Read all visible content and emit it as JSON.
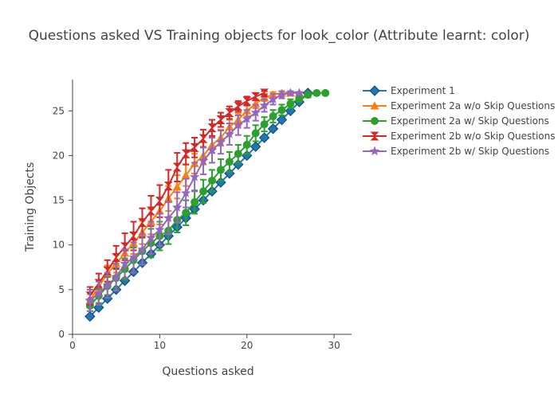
{
  "chart_data": {
    "type": "line",
    "title": "Questions asked VS Training objects for look_color (Attribute learnt: color)",
    "xlabel": "Questions asked",
    "ylabel": "Training Objects",
    "xlim": [
      0,
      32
    ],
    "ylim": [
      0,
      28.5
    ],
    "xticks": [
      0,
      10,
      20,
      30
    ],
    "yticks": [
      0,
      5,
      10,
      15,
      20,
      25
    ],
    "grid": false,
    "legend_position": "top-right",
    "series": [
      {
        "name": "Experiment 1",
        "color": "#1f77b4",
        "marker": "diamond",
        "x": [
          2,
          3,
          4,
          5,
          6,
          7,
          8,
          9,
          10,
          11,
          12,
          13,
          14,
          15,
          16,
          17,
          18,
          19,
          20,
          21,
          22,
          23,
          24,
          25,
          26,
          27
        ],
        "y": [
          2,
          3,
          4,
          5,
          6,
          7,
          8,
          9,
          10,
          11,
          12,
          13,
          14,
          15,
          16,
          17,
          18,
          19,
          20,
          21,
          22,
          23,
          24,
          25,
          26,
          27
        ],
        "err": [
          0,
          0,
          0,
          0,
          0,
          0,
          0,
          0,
          0,
          0,
          0,
          0,
          0,
          0,
          0,
          0,
          0,
          0,
          0,
          0,
          0,
          0,
          0,
          0,
          0,
          0
        ]
      },
      {
        "name": "Experiment 2a w/o Skip Questions",
        "color": "#ff7f0e",
        "marker": "triangle-up",
        "x": [
          2,
          3,
          4,
          5,
          6,
          7,
          8,
          9,
          10,
          11,
          12,
          13,
          14,
          15,
          16,
          17,
          18,
          19,
          20,
          21,
          22,
          23,
          24,
          25,
          26
        ],
        "y": [
          3.8,
          5.3,
          6.8,
          7.9,
          9.1,
          10.2,
          11.4,
          12.6,
          13.8,
          15.2,
          16.5,
          17.8,
          19.1,
          20.0,
          21.2,
          22.0,
          23.2,
          24.0,
          25.0,
          25.8,
          26.5,
          26.8,
          27.0,
          27.0,
          27.0
        ],
        "err": [
          0.7,
          0.8,
          0.9,
          1.0,
          1.1,
          1.2,
          1.3,
          1.4,
          1.5,
          1.4,
          1.3,
          1.2,
          1.1,
          1.0,
          0.9,
          0.9,
          0.8,
          0.7,
          0.6,
          0.5,
          0.4,
          0.3,
          0.2,
          0.2,
          0.1
        ]
      },
      {
        "name": "Experiment 2a w/ Skip Questions",
        "color": "#2ca02c",
        "marker": "circle",
        "x": [
          2,
          3,
          4,
          5,
          6,
          7,
          8,
          9,
          10,
          11,
          12,
          13,
          14,
          15,
          16,
          17,
          18,
          19,
          20,
          21,
          22,
          23,
          24,
          25,
          26,
          27,
          28,
          29
        ],
        "y": [
          3.2,
          4.3,
          5.4,
          6.3,
          7.3,
          8.3,
          9.3,
          10.2,
          11.0,
          11.6,
          12.8,
          13.6,
          14.8,
          16.0,
          17.2,
          18.4,
          19.3,
          20.2,
          21.2,
          22.5,
          23.5,
          24.4,
          25.1,
          25.8,
          26.4,
          26.8,
          27.0,
          27.0
        ],
        "err": [
          0.6,
          0.8,
          1.0,
          1.1,
          1.2,
          1.4,
          1.5,
          1.6,
          1.6,
          1.5,
          1.4,
          1.4,
          1.3,
          1.3,
          1.2,
          1.2,
          1.1,
          1.0,
          1.0,
          0.9,
          0.8,
          0.7,
          0.6,
          0.5,
          0.4,
          0.3,
          0.1,
          0.1
        ]
      },
      {
        "name": "Experiment 2b w/o Skip Questions",
        "color": "#d62728",
        "marker": "hourglass",
        "x": [
          2,
          3,
          4,
          5,
          6,
          7,
          8,
          9,
          10,
          11,
          12,
          13,
          14,
          15,
          16,
          17,
          18,
          19,
          20,
          21,
          22
        ],
        "y": [
          4.3,
          5.7,
          7.1,
          8.6,
          9.8,
          11.0,
          12.5,
          13.8,
          14.9,
          16.6,
          18.7,
          20.2,
          20.9,
          21.9,
          23.1,
          24.0,
          24.8,
          25.5,
          26.1,
          26.6,
          27.0
        ],
        "err": [
          1.0,
          1.1,
          1.2,
          1.3,
          1.5,
          1.6,
          1.6,
          1.7,
          1.8,
          1.8,
          1.6,
          1.2,
          1.1,
          1.0,
          0.9,
          0.8,
          0.7,
          0.6,
          0.5,
          0.4,
          0.2
        ]
      },
      {
        "name": "Experiment 2b w/ Skip Questions",
        "color": "#9467bd",
        "marker": "star",
        "x": [
          2,
          3,
          4,
          5,
          6,
          7,
          8,
          9,
          10,
          11,
          12,
          13,
          14,
          15,
          16,
          17,
          18,
          19,
          20,
          21,
          22,
          23,
          24,
          25,
          26
        ],
        "y": [
          3.8,
          4.6,
          5.5,
          6.4,
          7.9,
          8.6,
          9.5,
          10.8,
          11.7,
          13.0,
          14.2,
          15.8,
          17.6,
          19.4,
          20.6,
          21.5,
          22.4,
          23.4,
          24.1,
          24.8,
          25.6,
          26.3,
          26.8,
          27.0,
          27.0
        ],
        "err": [
          1.2,
          1.3,
          1.4,
          1.5,
          1.6,
          1.7,
          1.7,
          1.8,
          1.8,
          1.8,
          1.7,
          1.6,
          1.6,
          1.5,
          1.4,
          1.3,
          1.2,
          1.1,
          1.0,
          0.9,
          0.7,
          0.6,
          0.4,
          0.2,
          0.1
        ]
      }
    ]
  }
}
